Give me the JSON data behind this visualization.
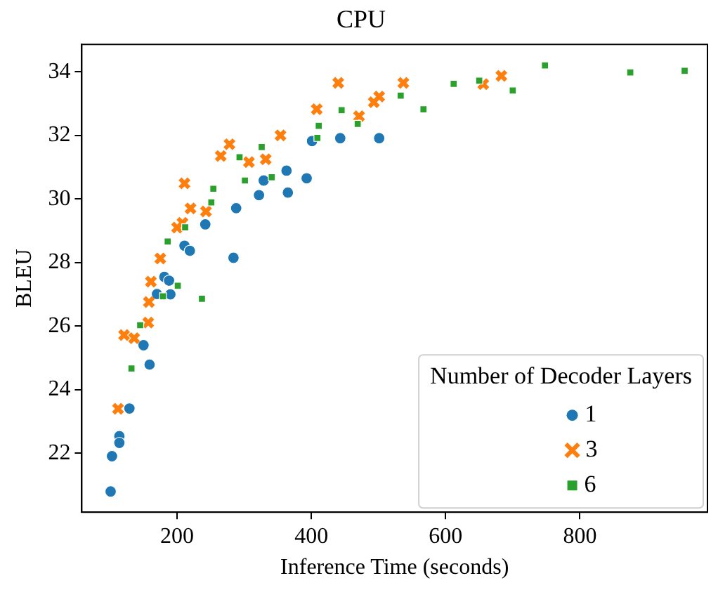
{
  "chart_data": {
    "type": "scatter",
    "title": "CPU",
    "xlabel": "Inference Time (seconds)",
    "ylabel": "BLEU",
    "legend_title": "Number of Decoder Layers",
    "legend": "bottom right",
    "grid": false,
    "xlim": [
      58,
      990
    ],
    "xticks": [
      200,
      400,
      600,
      800
    ],
    "ylim": [
      20.15,
      34.86
    ],
    "yticks": [
      22,
      24,
      26,
      28,
      30,
      32,
      34
    ],
    "series": [
      {
        "name": "1",
        "color": "#1f77b4",
        "marker": "circle",
        "x": [
          101,
          103,
          114,
          114,
          129,
          159,
          150,
          170,
          190,
          181,
          188,
          211,
          219,
          284,
          242,
          288,
          322,
          365,
          329,
          363,
          393,
          401,
          443,
          501
        ],
        "values": [
          20.8,
          21.91,
          22.54,
          22.33,
          23.41,
          24.79,
          25.4,
          27.01,
          27.0,
          27.55,
          27.43,
          28.53,
          28.37,
          28.15,
          29.2,
          29.71,
          30.12,
          30.2,
          30.58,
          30.89,
          30.65,
          31.82,
          31.91,
          31.91
        ]
      },
      {
        "name": "3",
        "color": "#ff7f0e",
        "marker": "cross",
        "x": [
          112,
          121,
          136,
          157,
          158,
          161,
          175,
          200,
          208,
          220,
          243,
          211,
          265,
          278,
          307,
          332,
          354,
          408,
          440,
          471,
          493,
          501,
          537,
          656,
          683
        ],
        "values": [
          23.4,
          25.72,
          25.62,
          26.11,
          26.76,
          27.4,
          28.13,
          29.1,
          29.25,
          29.7,
          29.61,
          30.49,
          31.35,
          31.72,
          31.16,
          31.25,
          32.0,
          32.82,
          33.65,
          32.6,
          33.04,
          33.22,
          33.65,
          33.61,
          33.87
        ]
      },
      {
        "name": "6",
        "color": "#2ca02c",
        "marker": "square",
        "x": [
          132,
          145,
          179,
          201,
          237,
          186,
          212,
          251,
          254,
          293,
          301,
          326,
          341,
          409,
          411,
          445,
          469,
          533,
          567,
          612,
          650,
          700,
          748,
          875,
          956
        ],
        "values": [
          24.67,
          26.03,
          26.94,
          27.27,
          26.86,
          28.66,
          29.11,
          29.89,
          30.32,
          31.31,
          30.58,
          31.63,
          30.68,
          31.92,
          32.3,
          32.79,
          32.36,
          33.25,
          32.82,
          33.62,
          33.72,
          33.41,
          34.2,
          33.98,
          34.03
        ]
      }
    ]
  }
}
